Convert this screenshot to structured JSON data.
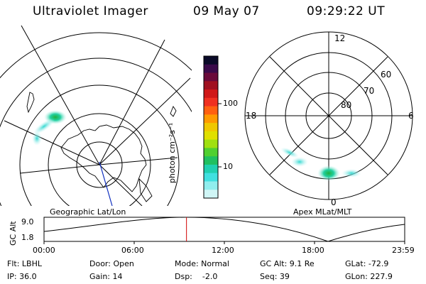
{
  "header": {
    "instrument": "Ultraviolet Imager",
    "date": "09 May 07",
    "time": "09:29:22 UT"
  },
  "colorbar": {
    "unit_label": "photon cm⁻²s⁻¹",
    "ticks": [
      "100",
      "10"
    ],
    "colors": [
      "#0a0a28",
      "#3a0a4a",
      "#6a0a3a",
      "#a01020",
      "#d01818",
      "#f03020",
      "#ff6010",
      "#ff9a00",
      "#f0c800",
      "#e0e000",
      "#a0e010",
      "#50d030",
      "#20c060",
      "#20d0b0",
      "#40e0e0",
      "#90eeee",
      "#d0f6f6"
    ]
  },
  "geographic_map": {
    "title": "Geographic Lat/Lon"
  },
  "apex_map": {
    "title": "Apex MLat/MLT",
    "lat_labels": [
      "60",
      "70",
      "80"
    ],
    "mlt_labels": {
      "top": "12",
      "left": "18",
      "right": "6",
      "bottom": "0"
    }
  },
  "altitude_plot": {
    "ylabel": "GC Alt",
    "ymax_label": "9.0",
    "ymin_label": "1.8",
    "xticks": [
      "00:00",
      "06:00",
      "12:00",
      "18:00",
      "23:59"
    ],
    "current_fraction": 0.395
  },
  "status": {
    "filter": "Flt: LBHL",
    "ip": "IP: 36.0",
    "door": "Door: Open",
    "gain": "Gain: 14",
    "mode": "Mode: Normal",
    "dsp": "Dsp:    -2.0",
    "gc_alt": "GC Alt: 9.1 Re",
    "seq": "Seq: 39",
    "glat": "GLat: -72.9",
    "glon": "GLon: 227.9"
  }
}
